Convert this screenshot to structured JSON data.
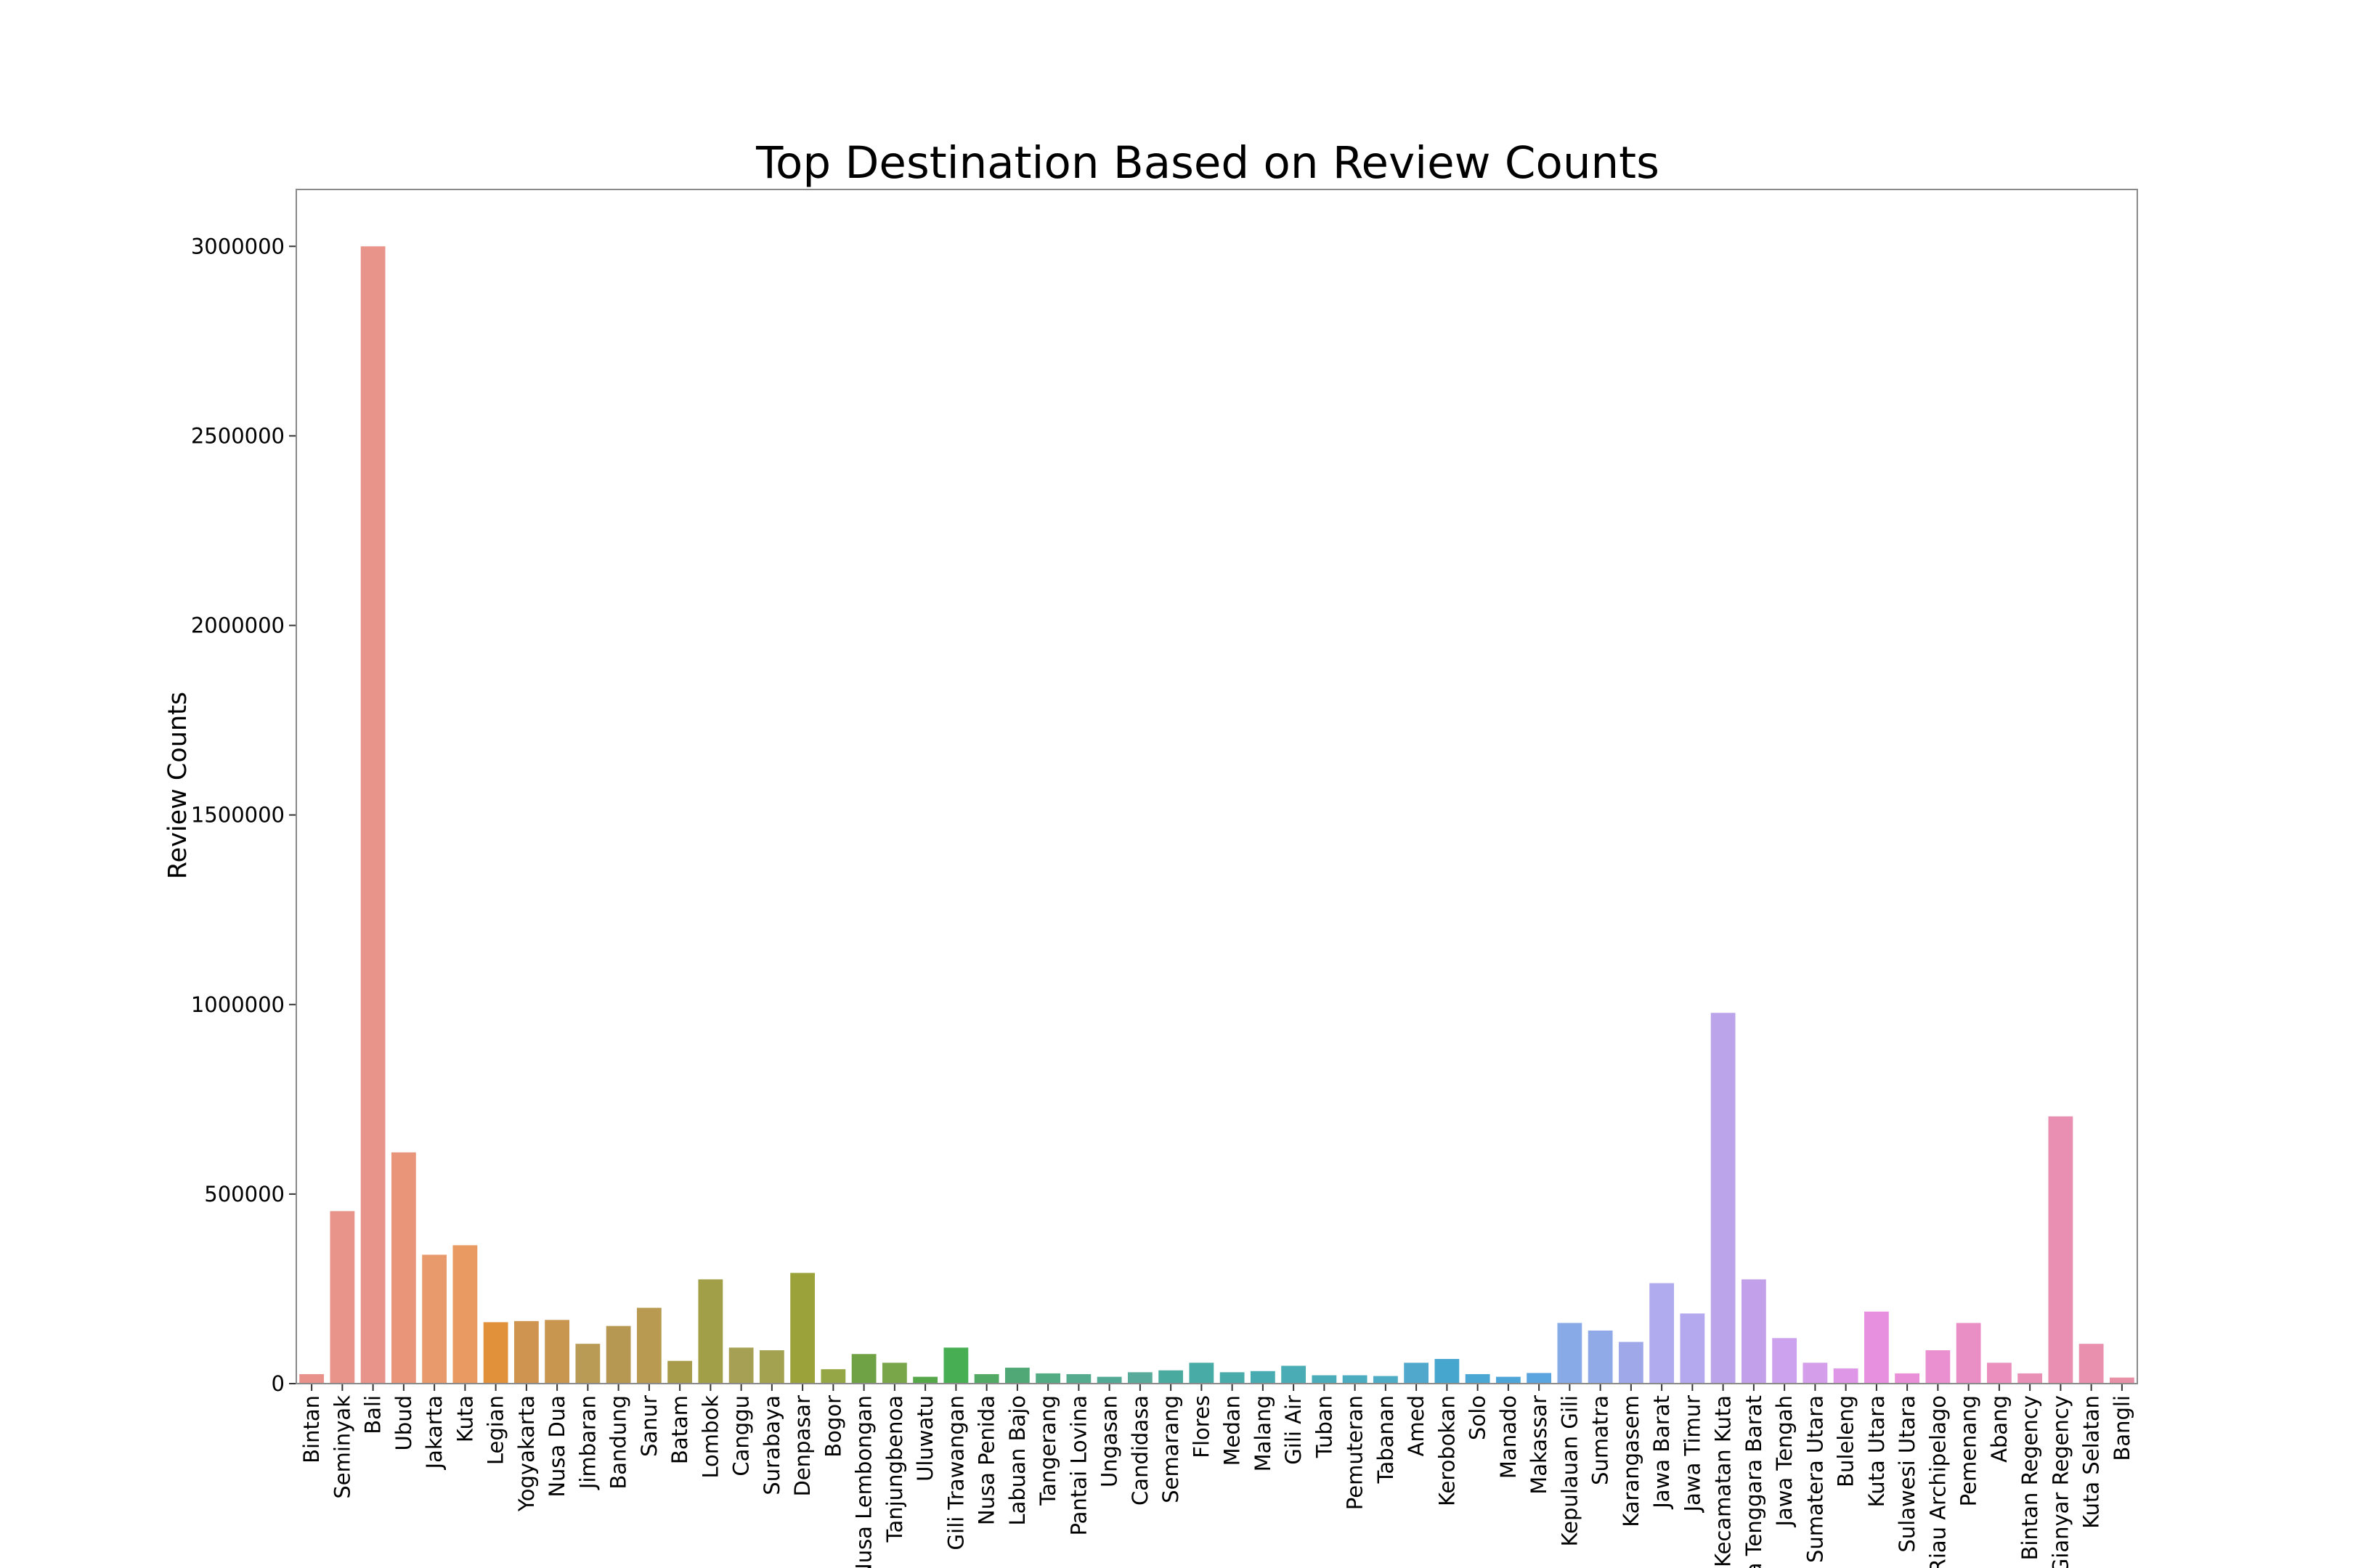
{
  "chart_data": {
    "type": "bar",
    "title": "Top Destination Based on Review Counts",
    "xlabel": "",
    "ylabel": "Review Counts",
    "ylim": [
      0,
      3150000
    ],
    "yticks": [
      0,
      500000,
      1000000,
      1500000,
      2000000,
      2500000,
      3000000
    ],
    "ytick_labels": [
      "0",
      "500000",
      "1000000",
      "1500000",
      "2000000",
      "2500000",
      "3000000"
    ],
    "grid": false,
    "categories": [
      "Bintan",
      "Seminyak",
      "Bali",
      "Ubud",
      "Jakarta",
      "Kuta",
      "Legian",
      "Yogyakarta",
      "Nusa Dua",
      "Jimbaran",
      "Bandung",
      "Sanur",
      "Batam",
      "Lombok",
      "Canggu",
      "Surabaya",
      "Denpasar",
      "Bogor",
      "Nusa Lembongan",
      "Tanjungbenoa",
      "Uluwatu",
      "Gili Trawangan",
      "Nusa Penida",
      "Labuan Bajo",
      "Tangerang",
      "Pantai Lovina",
      "Ungasan",
      "Candidasa",
      "Semarang",
      "Flores",
      "Medan",
      "Malang",
      "Gili Air",
      "Tuban",
      "Pemuteran",
      "Tabanan",
      "Amed",
      "Kerobokan",
      "Solo",
      "Manado",
      "Makassar",
      "Kepulauan Gili",
      "Sumatra",
      "Karangasem",
      "Jawa Barat",
      "Jawa Timur",
      "Kecamatan Kuta",
      "a Tenggara Barat",
      "Jawa Tengah",
      "Sumatera Utara",
      "Buleleng",
      "Kuta Utara",
      "Sulawesi Utara",
      "Riau Archipelago",
      "Pemenang",
      "Abang",
      "Bintan Regency",
      "Gianyar Regency",
      "Kuta Selatan",
      "Bangli"
    ],
    "values": [
      25000,
      455000,
      3000000,
      610000,
      340000,
      365000,
      162000,
      165000,
      168000,
      105000,
      152000,
      200000,
      60000,
      275000,
      95000,
      88000,
      292000,
      38000,
      78000,
      55000,
      18000,
      95000,
      25000,
      42000,
      27000,
      25000,
      18000,
      30000,
      35000,
      55000,
      30000,
      33000,
      47000,
      22000,
      22000,
      20000,
      55000,
      65000,
      25000,
      18000,
      28000,
      160000,
      140000,
      110000,
      265000,
      185000,
      978000,
      275000,
      120000,
      55000,
      40000,
      190000,
      27000,
      88000,
      160000,
      55000,
      27000,
      705000,
      105000,
      16000
    ],
    "colors": [
      "#e8908a",
      "#e8948a",
      "#e8948a",
      "#e8957a",
      "#e89a6c",
      "#e89a62",
      "#e0913a",
      "#cf9450",
      "#c99650",
      "#b99b55",
      "#b69852",
      "#b89a50",
      "#a89b4a",
      "#a1a049",
      "#a6a055",
      "#a2a250",
      "#9ca23a",
      "#95a647",
      "#6fa245",
      "#79a648",
      "#56a64a",
      "#48ae53",
      "#51a964",
      "#4fa875",
      "#52ab82",
      "#55ab8e",
      "#52aa96",
      "#58ab9a",
      "#49aba0",
      "#48aba5",
      "#4aabab",
      "#48abb2",
      "#4aacb5",
      "#4aacb8",
      "#4aacbe",
      "#4eadc4",
      "#50a8cd",
      "#47a6ce",
      "#4aa6d2",
      "#4ea5d8",
      "#5aa4e0",
      "#88abe8",
      "#90aae8",
      "#9fa9ea",
      "#b0aaee",
      "#b4a8ee",
      "#bba4ea",
      "#c2a0ea",
      "#cca1ed",
      "#d49eea",
      "#dd97e6",
      "#e690df",
      "#e98fd8",
      "#ea90d0",
      "#ea8fc6",
      "#ea8fbe",
      "#e990b6",
      "#e88fb2",
      "#e890ae",
      "#e891a6"
    ]
  }
}
